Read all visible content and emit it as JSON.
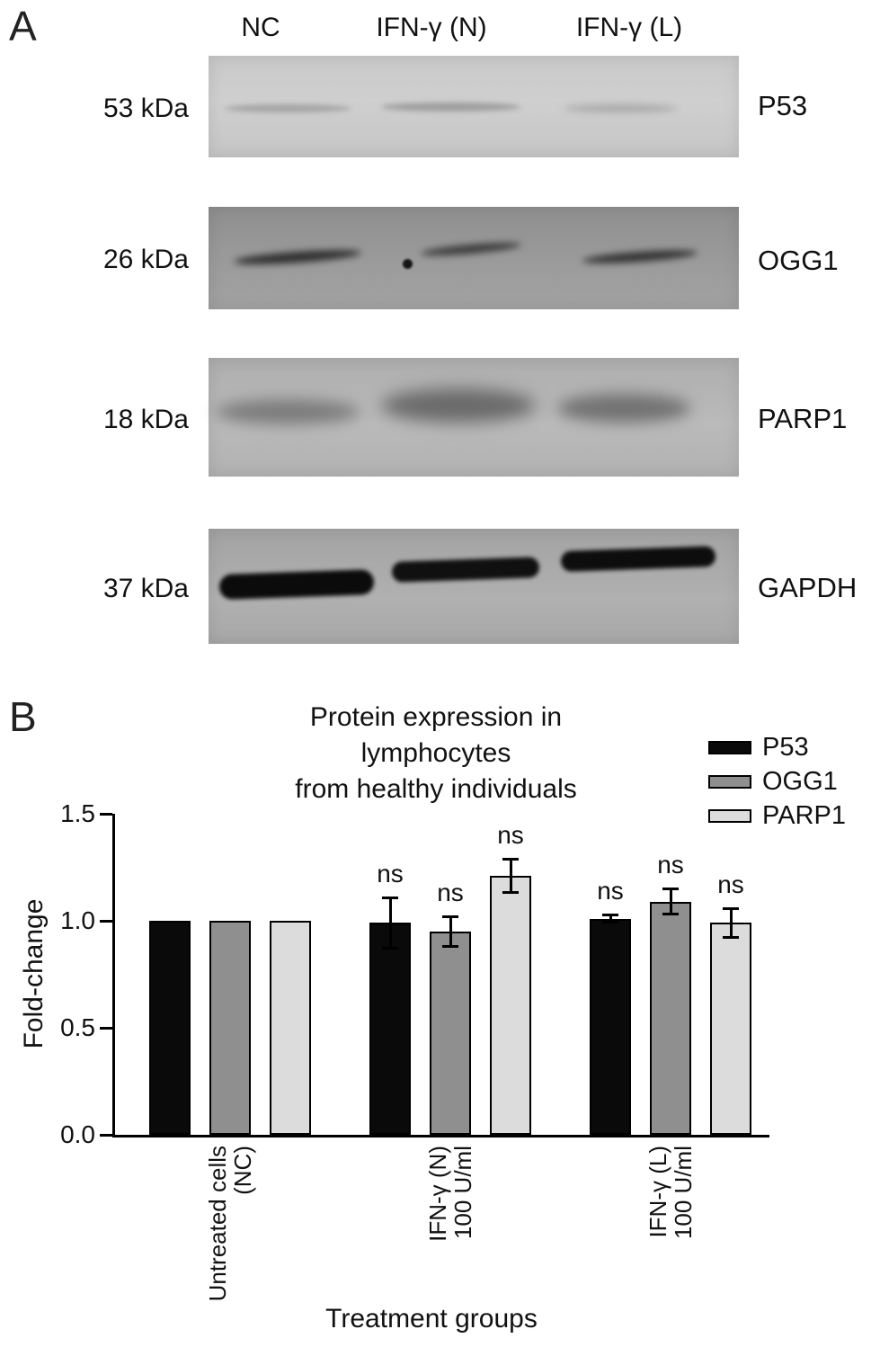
{
  "figure": {
    "panel_a": {
      "label": "A",
      "lane_headers": [
        "NC",
        "IFN-γ (N)",
        "IFN-γ (L)"
      ],
      "blots": [
        {
          "molecular_weight": "53 kDa",
          "protein": "P53"
        },
        {
          "molecular_weight": "26 kDa",
          "protein": "OGG1"
        },
        {
          "molecular_weight": "18 kDa",
          "protein": "PARP1"
        },
        {
          "molecular_weight": "37 kDa",
          "protein": "GAPDH"
        }
      ]
    },
    "panel_b": {
      "label": "B",
      "title_lines": [
        "Protein expression in",
        "lymphocytes",
        "from healthy individuals"
      ],
      "legend": [
        {
          "label": "P53",
          "color": "#0a0a0a"
        },
        {
          "label": "OGG1",
          "color": "#8f8f8f"
        },
        {
          "label": "PARP1",
          "color": "#dcdcdc"
        }
      ]
    }
  },
  "chart_data": {
    "type": "bar",
    "title": "Protein expression in lymphocytes from healthy individuals",
    "xlabel": "Treatment groups",
    "ylabel": "Fold-change",
    "ylim": [
      0,
      1.5
    ],
    "yticks": [
      0.0,
      0.5,
      1.0,
      1.5
    ],
    "categories": [
      "Untreated cells (NC)",
      "IFN-γ (N) 100 U/ml",
      "IFN-γ (L) 100 U/ml"
    ],
    "categories_lines": [
      [
        "Untreated cells",
        "(NC)"
      ],
      [
        "IFN-γ (N)",
        "100 U/ml"
      ],
      [
        "IFN-γ (L)",
        "100 U/ml"
      ]
    ],
    "series": [
      {
        "name": "P53",
        "color": "#0a0a0a",
        "values": [
          1.0,
          0.99,
          1.01
        ],
        "errors": [
          null,
          0.12,
          0.02
        ]
      },
      {
        "name": "OGG1",
        "color": "#8f8f8f",
        "values": [
          1.0,
          0.95,
          1.09
        ],
        "errors": [
          null,
          0.07,
          0.06
        ]
      },
      {
        "name": "PARP1",
        "color": "#dcdcdc",
        "values": [
          1.0,
          1.21,
          0.99
        ],
        "errors": [
          null,
          0.08,
          0.07
        ]
      }
    ],
    "sig_labels": [
      [
        null,
        null,
        null
      ],
      [
        "ns",
        "ns",
        "ns"
      ],
      [
        "ns",
        "ns",
        "ns"
      ]
    ],
    "legend_position": "top-right",
    "grid": false
  }
}
